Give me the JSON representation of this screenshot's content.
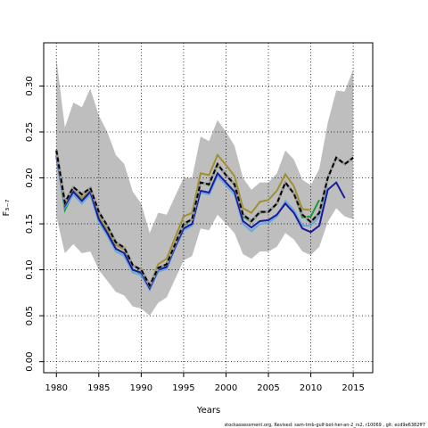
{
  "chart_data": {
    "type": "line",
    "xlabel": "Years",
    "ylabel": "F₃₋₇",
    "footnote": "stockassessment.org, Revised: sam-tmb-gulf-bot-her-an-2_rs2, r10069 , git: ecd9e6382ff7",
    "xlim": [
      1978.5,
      2017.3
    ],
    "ylim": [
      -0.012,
      0.347
    ],
    "xticks": [
      1980,
      1985,
      1990,
      1995,
      2000,
      2005,
      2010,
      2015
    ],
    "yticks": [
      {
        "value": 0,
        "label": "0.00"
      },
      {
        "value": 0.05,
        "label": "0.05"
      },
      {
        "value": 0.1,
        "label": "0.10"
      },
      {
        "value": 0.15,
        "label": "0.15"
      },
      {
        "value": 0.2,
        "label": "0.20"
      },
      {
        "value": 0.25,
        "label": "0.25"
      },
      {
        "value": 0.3,
        "label": "0.30"
      }
    ],
    "grid": true,
    "x": [
      1980,
      1981,
      1982,
      1983,
      1984,
      1985,
      1986,
      1987,
      1988,
      1989,
      1990,
      1991,
      1992,
      1993,
      1994,
      1995,
      1996,
      1997,
      1998,
      1999,
      2000,
      2001,
      2002,
      2003,
      2004,
      2005,
      2006,
      2007,
      2008,
      2009,
      2010,
      2011,
      2012,
      2013,
      2014,
      2015
    ],
    "band": {
      "color": "#bebebe",
      "upper": [
        0.33,
        0.255,
        0.282,
        0.277,
        0.297,
        0.268,
        0.25,
        0.225,
        0.215,
        0.185,
        0.172,
        0.14,
        0.162,
        0.16,
        0.18,
        0.2,
        0.2,
        0.245,
        0.24,
        0.263,
        0.25,
        0.235,
        0.2,
        0.187,
        0.195,
        0.195,
        0.205,
        0.23,
        0.22,
        0.198,
        0.192,
        0.21,
        0.26,
        0.295,
        0.294,
        0.318
      ],
      "lower": [
        0.158,
        0.118,
        0.128,
        0.118,
        0.12,
        0.1,
        0.088,
        0.076,
        0.072,
        0.06,
        0.058,
        0.05,
        0.064,
        0.07,
        0.09,
        0.11,
        0.115,
        0.145,
        0.143,
        0.16,
        0.15,
        0.14,
        0.117,
        0.112,
        0.12,
        0.12,
        0.125,
        0.14,
        0.133,
        0.12,
        0.116,
        0.125,
        0.152,
        0.167,
        0.158,
        0.155
      ]
    },
    "series": [
      {
        "color": "#a09030",
        "values": [
          0.226,
          0.168,
          0.186,
          0.178,
          0.186,
          0.158,
          0.143,
          0.127,
          0.122,
          0.104,
          0.101,
          0.083,
          0.106,
          0.112,
          0.135,
          0.158,
          0.162,
          0.205,
          0.203,
          0.225,
          0.214,
          0.202,
          0.167,
          0.162,
          0.174,
          0.176,
          0.186,
          0.204,
          0.191,
          0.166,
          0.165,
          null,
          null,
          null,
          null,
          null
        ]
      },
      {
        "color": "#1a9a3a",
        "values": [
          0.225,
          0.165,
          0.184,
          0.175,
          0.184,
          0.155,
          0.14,
          0.123,
          0.118,
          0.1,
          0.096,
          0.08,
          0.1,
          0.104,
          0.127,
          0.148,
          0.155,
          0.195,
          0.192,
          0.214,
          0.203,
          0.192,
          0.158,
          0.152,
          0.162,
          0.163,
          0.172,
          0.195,
          0.183,
          0.157,
          0.158,
          0.176,
          null,
          null,
          null,
          null
        ]
      },
      {
        "color": "#6aa8e0",
        "values": [
          0.222,
          0.168,
          0.182,
          0.172,
          0.182,
          0.152,
          0.137,
          0.12,
          0.115,
          0.097,
          0.094,
          0.078,
          0.098,
          0.101,
          0.123,
          0.143,
          0.148,
          0.184,
          0.182,
          0.202,
          0.192,
          0.182,
          0.15,
          0.142,
          0.15,
          0.151,
          0.158,
          0.175,
          0.165,
          0.148,
          0.148,
          0.158,
          0.19,
          null,
          null,
          null
        ]
      },
      {
        "color": "#1a1a9c",
        "values": [
          0.224,
          0.17,
          0.185,
          0.175,
          0.185,
          0.155,
          0.14,
          0.123,
          0.118,
          0.1,
          0.097,
          0.08,
          0.1,
          0.103,
          0.125,
          0.145,
          0.15,
          0.186,
          0.184,
          0.205,
          0.195,
          0.185,
          0.153,
          0.146,
          0.153,
          0.154,
          0.16,
          0.172,
          0.162,
          0.145,
          0.141,
          0.148,
          0.187,
          0.195,
          0.178,
          null
        ]
      },
      {
        "color": "#000000",
        "dashed": true,
        "values": [
          0.23,
          0.173,
          0.19,
          0.182,
          0.189,
          0.163,
          0.148,
          0.13,
          0.124,
          0.105,
          0.1,
          0.083,
          0.102,
          0.106,
          0.128,
          0.15,
          0.155,
          0.195,
          0.193,
          0.215,
          0.203,
          0.193,
          0.16,
          0.153,
          0.163,
          0.163,
          0.172,
          0.195,
          0.183,
          0.16,
          0.152,
          0.162,
          0.2,
          0.222,
          0.215,
          0.222
        ]
      }
    ]
  }
}
